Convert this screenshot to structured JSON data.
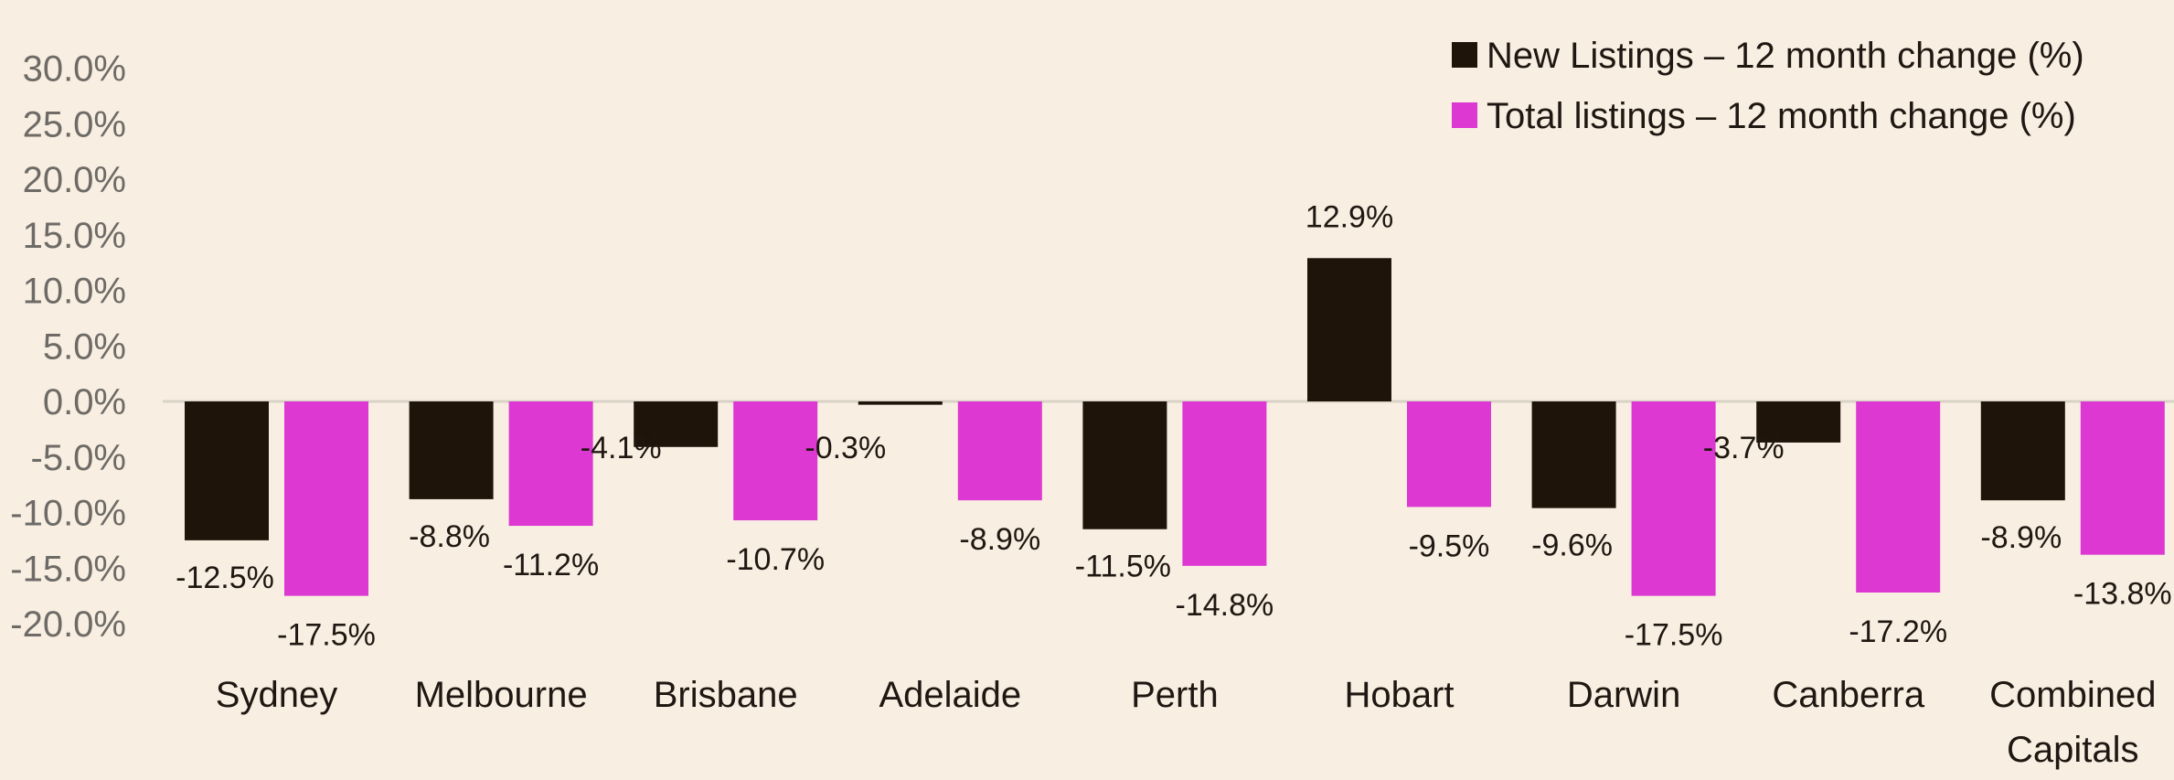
{
  "chart_data": {
    "type": "bar",
    "title": "",
    "xlabel": "",
    "ylabel": "",
    "ylim": [
      -20,
      30
    ],
    "ytick_step": 5,
    "tick_labels": [
      "-20.0%",
      "-15.0%",
      "-10.0%",
      "-5.0%",
      "0.0%",
      "5.0%",
      "10.0%",
      "15.0%",
      "20.0%",
      "25.0%",
      "30.0%"
    ],
    "grid": false,
    "legend_position": "top-right",
    "categories": [
      [
        "Sydney"
      ],
      [
        "Melbourne"
      ],
      [
        "Brisbane"
      ],
      [
        "Adelaide"
      ],
      [
        "Perth"
      ],
      [
        "Hobart"
      ],
      [
        "Darwin"
      ],
      [
        "Canberra"
      ],
      [
        "Combined",
        "Capitals"
      ]
    ],
    "series": [
      {
        "name": "New Listings – 12 month change (%)",
        "color": "#1f1409",
        "values": [
          -12.5,
          -8.8,
          -4.1,
          -0.3,
          -11.5,
          12.9,
          -9.6,
          -3.7,
          -8.9
        ],
        "labels": [
          "-12.5%",
          "-8.8%",
          "-4.1%",
          "-0.3%",
          "-11.5%",
          "12.9%",
          "-9.6%",
          "-3.7%",
          "-8.9%"
        ]
      },
      {
        "name": "Total listings – 12 month change (%)",
        "color": "#dd38d2",
        "values": [
          -17.5,
          -11.2,
          -10.7,
          -8.9,
          -14.8,
          -9.5,
          -17.5,
          -17.2,
          -13.8
        ],
        "labels": [
          "-17.5%",
          "-11.2%",
          "-10.7%",
          "-8.9%",
          "-14.8%",
          "-9.5%",
          "-17.5%",
          "-17.2%",
          "-13.8%"
        ]
      }
    ],
    "colors": {
      "background": "#f8efe2",
      "zero_line": "#d9d2c7",
      "tick_text": "#6e6a66",
      "text": "#1f1711"
    }
  }
}
